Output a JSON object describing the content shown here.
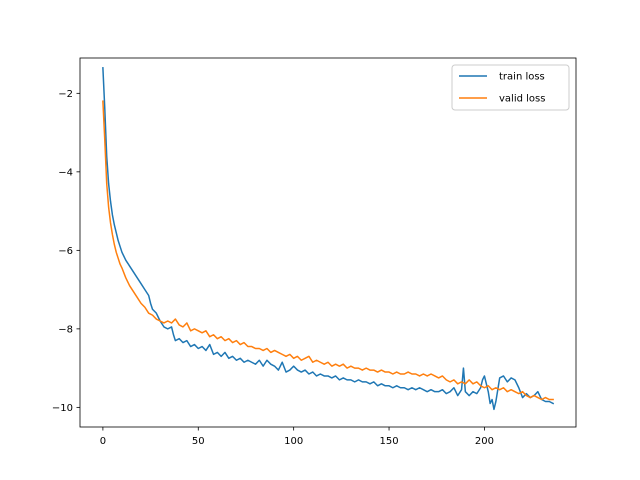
{
  "chart_data": {
    "type": "line",
    "title": "",
    "xlabel": "",
    "ylabel": "",
    "xlim": [
      -12,
      248
    ],
    "ylim": [
      -10.5,
      -1.1
    ],
    "x_ticks": [
      0,
      50,
      100,
      150,
      200
    ],
    "x_tick_labels": [
      "0",
      "50",
      "100",
      "150",
      "200"
    ],
    "y_ticks": [
      -2,
      -4,
      -6,
      -8,
      -10
    ],
    "y_tick_labels": [
      "−2",
      "−4",
      "−6",
      "−8",
      "−10"
    ],
    "grid": false,
    "legend_position": "top-right",
    "series": [
      {
        "name": "train loss",
        "color": "#1f77b4",
        "points": [
          [
            0,
            -1.35
          ],
          [
            1,
            -2.4
          ],
          [
            2,
            -3.6
          ],
          [
            3,
            -4.3
          ],
          [
            4,
            -4.75
          ],
          [
            5,
            -5.1
          ],
          [
            6,
            -5.35
          ],
          [
            7,
            -5.55
          ],
          [
            8,
            -5.75
          ],
          [
            9,
            -5.9
          ],
          [
            10,
            -6.05
          ],
          [
            12,
            -6.25
          ],
          [
            14,
            -6.4
          ],
          [
            16,
            -6.55
          ],
          [
            18,
            -6.7
          ],
          [
            20,
            -6.85
          ],
          [
            22,
            -7.0
          ],
          [
            24,
            -7.15
          ],
          [
            25,
            -7.35
          ],
          [
            26,
            -7.5
          ],
          [
            28,
            -7.6
          ],
          [
            30,
            -7.8
          ],
          [
            32,
            -7.95
          ],
          [
            34,
            -8.0
          ],
          [
            36,
            -7.95
          ],
          [
            37,
            -8.15
          ],
          [
            38,
            -8.3
          ],
          [
            40,
            -8.25
          ],
          [
            42,
            -8.35
          ],
          [
            44,
            -8.3
          ],
          [
            46,
            -8.45
          ],
          [
            48,
            -8.4
          ],
          [
            50,
            -8.5
          ],
          [
            52,
            -8.45
          ],
          [
            54,
            -8.55
          ],
          [
            56,
            -8.4
          ],
          [
            58,
            -8.65
          ],
          [
            60,
            -8.6
          ],
          [
            62,
            -8.7
          ],
          [
            64,
            -8.6
          ],
          [
            66,
            -8.75
          ],
          [
            68,
            -8.7
          ],
          [
            70,
            -8.8
          ],
          [
            72,
            -8.75
          ],
          [
            74,
            -8.85
          ],
          [
            76,
            -8.8
          ],
          [
            78,
            -8.85
          ],
          [
            80,
            -8.9
          ],
          [
            82,
            -8.8
          ],
          [
            84,
            -8.95
          ],
          [
            86,
            -8.8
          ],
          [
            88,
            -8.9
          ],
          [
            90,
            -8.95
          ],
          [
            92,
            -9.05
          ],
          [
            94,
            -8.85
          ],
          [
            96,
            -9.1
          ],
          [
            98,
            -9.05
          ],
          [
            100,
            -8.95
          ],
          [
            102,
            -9.05
          ],
          [
            104,
            -9.1
          ],
          [
            106,
            -9.05
          ],
          [
            108,
            -9.15
          ],
          [
            110,
            -9.1
          ],
          [
            112,
            -9.2
          ],
          [
            114,
            -9.15
          ],
          [
            116,
            -9.2
          ],
          [
            118,
            -9.2
          ],
          [
            120,
            -9.25
          ],
          [
            122,
            -9.2
          ],
          [
            124,
            -9.3
          ],
          [
            126,
            -9.25
          ],
          [
            128,
            -9.3
          ],
          [
            130,
            -9.3
          ],
          [
            132,
            -9.35
          ],
          [
            134,
            -9.3
          ],
          [
            136,
            -9.35
          ],
          [
            138,
            -9.35
          ],
          [
            140,
            -9.4
          ],
          [
            142,
            -9.35
          ],
          [
            144,
            -9.45
          ],
          [
            146,
            -9.4
          ],
          [
            148,
            -9.45
          ],
          [
            150,
            -9.45
          ],
          [
            152,
            -9.5
          ],
          [
            154,
            -9.45
          ],
          [
            156,
            -9.5
          ],
          [
            158,
            -9.5
          ],
          [
            160,
            -9.55
          ],
          [
            162,
            -9.5
          ],
          [
            164,
            -9.55
          ],
          [
            166,
            -9.5
          ],
          [
            168,
            -9.55
          ],
          [
            170,
            -9.6
          ],
          [
            172,
            -9.55
          ],
          [
            174,
            -9.6
          ],
          [
            176,
            -9.6
          ],
          [
            178,
            -9.55
          ],
          [
            180,
            -9.65
          ],
          [
            182,
            -9.6
          ],
          [
            184,
            -9.5
          ],
          [
            186,
            -9.7
          ],
          [
            188,
            -9.55
          ],
          [
            189,
            -9.0
          ],
          [
            190,
            -9.6
          ],
          [
            192,
            -9.7
          ],
          [
            194,
            -9.6
          ],
          [
            196,
            -9.65
          ],
          [
            198,
            -9.5
          ],
          [
            199,
            -9.3
          ],
          [
            200,
            -9.2
          ],
          [
            201,
            -9.4
          ],
          [
            202,
            -9.6
          ],
          [
            203,
            -9.9
          ],
          [
            204,
            -9.8
          ],
          [
            205,
            -10.05
          ],
          [
            206,
            -9.85
          ],
          [
            207,
            -9.55
          ],
          [
            208,
            -9.25
          ],
          [
            210,
            -9.2
          ],
          [
            212,
            -9.35
          ],
          [
            214,
            -9.25
          ],
          [
            216,
            -9.3
          ],
          [
            218,
            -9.5
          ],
          [
            220,
            -9.75
          ],
          [
            222,
            -9.65
          ],
          [
            224,
            -9.75
          ],
          [
            226,
            -9.7
          ],
          [
            228,
            -9.6
          ],
          [
            230,
            -9.8
          ],
          [
            232,
            -9.85
          ],
          [
            234,
            -9.85
          ],
          [
            236,
            -9.9
          ]
        ]
      },
      {
        "name": "valid loss",
        "color": "#ff7f0e",
        "points": [
          [
            0,
            -2.2
          ],
          [
            1,
            -3.2
          ],
          [
            2,
            -4.3
          ],
          [
            3,
            -4.9
          ],
          [
            4,
            -5.3
          ],
          [
            5,
            -5.6
          ],
          [
            6,
            -5.85
          ],
          [
            7,
            -6.05
          ],
          [
            8,
            -6.2
          ],
          [
            9,
            -6.35
          ],
          [
            10,
            -6.45
          ],
          [
            12,
            -6.7
          ],
          [
            14,
            -6.9
          ],
          [
            16,
            -7.05
          ],
          [
            18,
            -7.2
          ],
          [
            20,
            -7.35
          ],
          [
            22,
            -7.45
          ],
          [
            24,
            -7.6
          ],
          [
            26,
            -7.65
          ],
          [
            28,
            -7.75
          ],
          [
            30,
            -7.8
          ],
          [
            32,
            -7.85
          ],
          [
            34,
            -7.8
          ],
          [
            36,
            -7.85
          ],
          [
            38,
            -7.75
          ],
          [
            40,
            -7.9
          ],
          [
            42,
            -7.95
          ],
          [
            44,
            -7.85
          ],
          [
            46,
            -8.05
          ],
          [
            48,
            -8.0
          ],
          [
            50,
            -8.05
          ],
          [
            52,
            -8.1
          ],
          [
            54,
            -8.05
          ],
          [
            56,
            -8.2
          ],
          [
            58,
            -8.15
          ],
          [
            60,
            -8.25
          ],
          [
            62,
            -8.2
          ],
          [
            64,
            -8.3
          ],
          [
            66,
            -8.25
          ],
          [
            68,
            -8.35
          ],
          [
            70,
            -8.3
          ],
          [
            72,
            -8.4
          ],
          [
            74,
            -8.35
          ],
          [
            76,
            -8.45
          ],
          [
            78,
            -8.45
          ],
          [
            80,
            -8.5
          ],
          [
            82,
            -8.5
          ],
          [
            84,
            -8.55
          ],
          [
            86,
            -8.5
          ],
          [
            88,
            -8.6
          ],
          [
            90,
            -8.55
          ],
          [
            92,
            -8.6
          ],
          [
            94,
            -8.65
          ],
          [
            96,
            -8.7
          ],
          [
            98,
            -8.65
          ],
          [
            100,
            -8.75
          ],
          [
            102,
            -8.7
          ],
          [
            104,
            -8.8
          ],
          [
            106,
            -8.75
          ],
          [
            108,
            -8.7
          ],
          [
            110,
            -8.85
          ],
          [
            112,
            -8.8
          ],
          [
            114,
            -8.85
          ],
          [
            116,
            -8.9
          ],
          [
            118,
            -8.85
          ],
          [
            120,
            -8.95
          ],
          [
            122,
            -8.9
          ],
          [
            124,
            -8.95
          ],
          [
            126,
            -8.9
          ],
          [
            128,
            -9.0
          ],
          [
            130,
            -8.95
          ],
          [
            132,
            -9.0
          ],
          [
            134,
            -9.0
          ],
          [
            136,
            -9.05
          ],
          [
            138,
            -9.0
          ],
          [
            140,
            -9.05
          ],
          [
            142,
            -9.05
          ],
          [
            144,
            -9.1
          ],
          [
            146,
            -9.05
          ],
          [
            148,
            -9.1
          ],
          [
            150,
            -9.1
          ],
          [
            152,
            -9.15
          ],
          [
            154,
            -9.1
          ],
          [
            156,
            -9.15
          ],
          [
            158,
            -9.15
          ],
          [
            160,
            -9.1
          ],
          [
            162,
            -9.15
          ],
          [
            164,
            -9.15
          ],
          [
            166,
            -9.2
          ],
          [
            168,
            -9.15
          ],
          [
            170,
            -9.2
          ],
          [
            172,
            -9.15
          ],
          [
            174,
            -9.2
          ],
          [
            176,
            -9.25
          ],
          [
            178,
            -9.2
          ],
          [
            180,
            -9.3
          ],
          [
            182,
            -9.35
          ],
          [
            184,
            -9.3
          ],
          [
            186,
            -9.4
          ],
          [
            188,
            -9.35
          ],
          [
            190,
            -9.4
          ],
          [
            192,
            -9.3
          ],
          [
            194,
            -9.4
          ],
          [
            196,
            -9.35
          ],
          [
            198,
            -9.45
          ],
          [
            200,
            -9.5
          ],
          [
            202,
            -9.45
          ],
          [
            204,
            -9.55
          ],
          [
            206,
            -9.5
          ],
          [
            208,
            -9.55
          ],
          [
            210,
            -9.5
          ],
          [
            212,
            -9.6
          ],
          [
            214,
            -9.55
          ],
          [
            216,
            -9.6
          ],
          [
            218,
            -9.65
          ],
          [
            220,
            -9.6
          ],
          [
            222,
            -9.7
          ],
          [
            224,
            -9.75
          ],
          [
            226,
            -9.7
          ],
          [
            228,
            -9.75
          ],
          [
            230,
            -9.8
          ],
          [
            232,
            -9.75
          ],
          [
            234,
            -9.8
          ],
          [
            236,
            -9.8
          ]
        ]
      }
    ]
  }
}
